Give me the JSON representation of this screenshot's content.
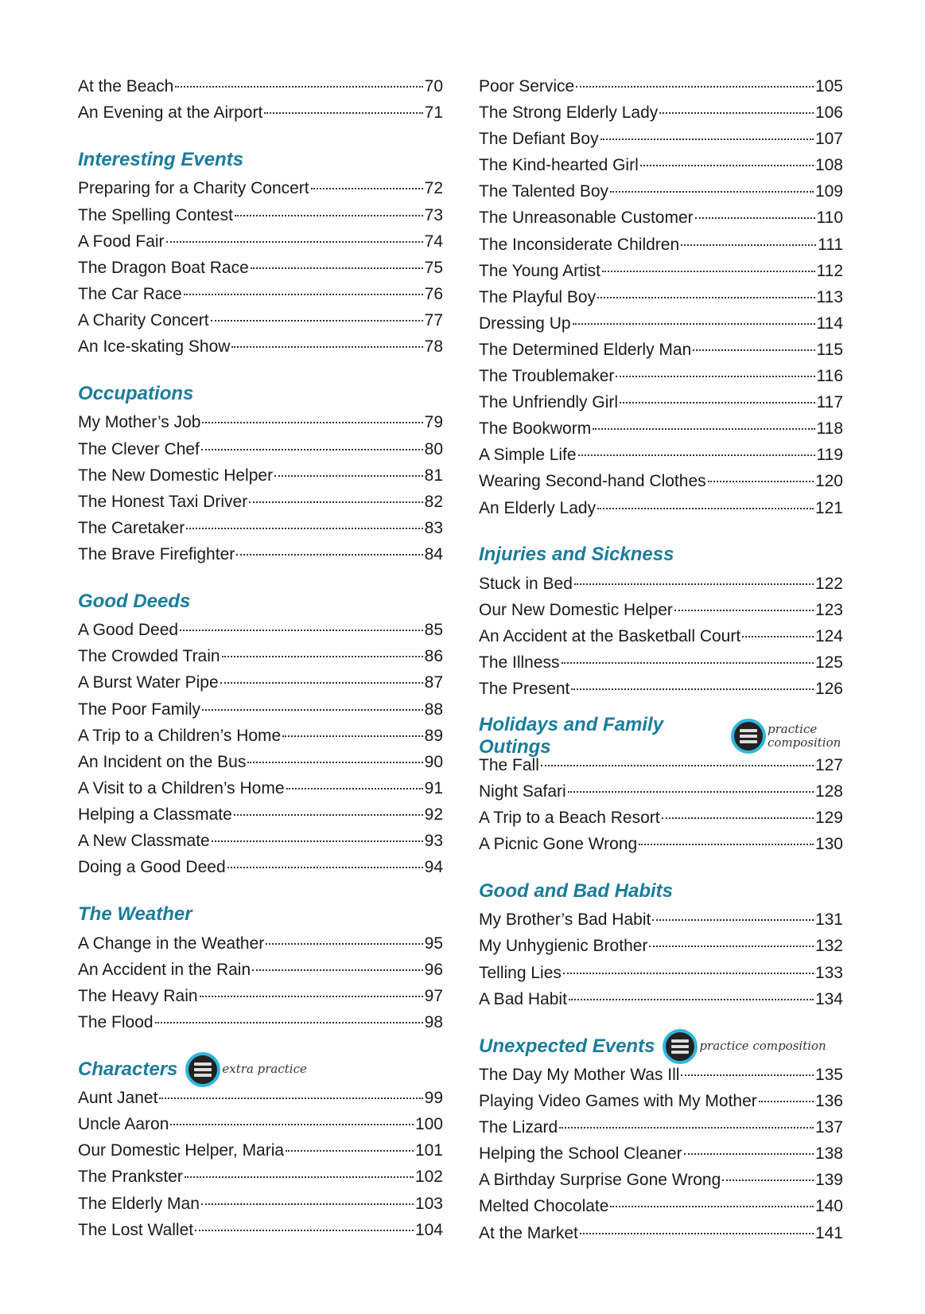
{
  "colors": {
    "heading": "#1b7c9c",
    "icon_ring": "#2fb7dd"
  },
  "left": [
    {
      "type": "entry",
      "title": "At the Beach",
      "page": "70"
    },
    {
      "type": "entry",
      "title": "An Evening at the Airport",
      "page": "71"
    },
    {
      "type": "heading",
      "title": "Interesting Events"
    },
    {
      "type": "entry",
      "title": "Preparing for a Charity Concert",
      "page": "72"
    },
    {
      "type": "entry",
      "title": "The Spelling Contest",
      "page": "73"
    },
    {
      "type": "entry",
      "title": "A Food Fair",
      "page": "74"
    },
    {
      "type": "entry",
      "title": "The Dragon Boat Race",
      "page": "75"
    },
    {
      "type": "entry",
      "title": "The Car Race",
      "page": "76"
    },
    {
      "type": "entry",
      "title": "A Charity Concert",
      "page": "77"
    },
    {
      "type": "entry",
      "title": "An Ice-skating Show",
      "page": "78"
    },
    {
      "type": "heading",
      "title": "Occupations"
    },
    {
      "type": "entry",
      "title": "My Mother’s Job",
      "page": "79"
    },
    {
      "type": "entry",
      "title": "The Clever Chef",
      "page": "80"
    },
    {
      "type": "entry",
      "title": "The New Domestic Helper",
      "page": "81"
    },
    {
      "type": "entry",
      "title": "The Honest Taxi Driver",
      "page": "82"
    },
    {
      "type": "entry",
      "title": "The Caretaker",
      "page": "83"
    },
    {
      "type": "entry",
      "title": "The Brave Firefighter",
      "page": "84"
    },
    {
      "type": "heading",
      "title": "Good Deeds"
    },
    {
      "type": "entry",
      "title": "A Good Deed",
      "page": "85"
    },
    {
      "type": "entry",
      "title": "The Crowded Train",
      "page": "86"
    },
    {
      "type": "entry",
      "title": "A Burst Water Pipe",
      "page": "87"
    },
    {
      "type": "entry",
      "title": "The Poor Family",
      "page": "88"
    },
    {
      "type": "entry",
      "title": "A Trip to a Children’s Home",
      "page": "89"
    },
    {
      "type": "entry",
      "title": "An Incident on the Bus",
      "page": "90"
    },
    {
      "type": "entry",
      "title": "A Visit to a Children’s Home",
      "page": "91"
    },
    {
      "type": "entry",
      "title": "Helping a Classmate",
      "page": "92"
    },
    {
      "type": "entry",
      "title": "A New Classmate",
      "page": "93"
    },
    {
      "type": "entry",
      "title": "Doing a Good Deed",
      "page": "94"
    },
    {
      "type": "heading",
      "title": "The Weather"
    },
    {
      "type": "entry",
      "title": "A Change in the Weather",
      "page": "95"
    },
    {
      "type": "entry",
      "title": "An Accident in the Rain",
      "page": "96"
    },
    {
      "type": "entry",
      "title": "The Heavy Rain",
      "page": "97"
    },
    {
      "type": "entry",
      "title": "The Flood",
      "page": "98"
    },
    {
      "type": "heading",
      "title": "Characters",
      "badge": "extra practice",
      "icon": "practice-book-icon"
    },
    {
      "type": "entry",
      "title": "Aunt Janet",
      "page": "99"
    },
    {
      "type": "entry",
      "title": "Uncle Aaron",
      "page": "100"
    },
    {
      "type": "entry",
      "title": "Our Domestic Helper, Maria",
      "page": "101"
    },
    {
      "type": "entry",
      "title": "The Prankster",
      "page": "102"
    },
    {
      "type": "entry",
      "title": "The Elderly Man",
      "page": "103"
    },
    {
      "type": "entry",
      "title": "The Lost Wallet",
      "page": "104"
    }
  ],
  "right": [
    {
      "type": "entry",
      "title": "Poor Service",
      "page": "105"
    },
    {
      "type": "entry",
      "title": "The Strong Elderly Lady",
      "page": "106"
    },
    {
      "type": "entry",
      "title": "The Defiant Boy",
      "page": "107"
    },
    {
      "type": "entry",
      "title": "The Kind-hearted Girl",
      "page": "108"
    },
    {
      "type": "entry",
      "title": "The Talented Boy",
      "page": "109"
    },
    {
      "type": "entry",
      "title": "The Unreasonable Customer",
      "page": "110"
    },
    {
      "type": "entry",
      "title": "The Inconsiderate Children",
      "page": "111"
    },
    {
      "type": "entry",
      "title": "The Young Artist",
      "page": "112"
    },
    {
      "type": "entry",
      "title": "The Playful Boy",
      "page": "113"
    },
    {
      "type": "entry",
      "title": "Dressing Up",
      "page": "114"
    },
    {
      "type": "entry",
      "title": "The Determined Elderly Man",
      "page": "115"
    },
    {
      "type": "entry",
      "title": "The Troublemaker",
      "page": "116"
    },
    {
      "type": "entry",
      "title": "The Unfriendly Girl",
      "page": "117"
    },
    {
      "type": "entry",
      "title": "The Bookworm",
      "page": "118"
    },
    {
      "type": "entry",
      "title": "A Simple Life",
      "page": "119"
    },
    {
      "type": "entry",
      "title": "Wearing Second-hand Clothes",
      "page": "120"
    },
    {
      "type": "entry",
      "title": "An Elderly Lady",
      "page": "121"
    },
    {
      "type": "heading",
      "title": "Injuries and Sickness"
    },
    {
      "type": "entry",
      "title": "Stuck in Bed",
      "page": "122"
    },
    {
      "type": "entry",
      "title": "Our New Domestic Helper",
      "page": "123"
    },
    {
      "type": "entry",
      "title": "An Accident at the Basketball Court",
      "page": "124"
    },
    {
      "type": "entry",
      "title": "The Illness",
      "page": "125"
    },
    {
      "type": "entry",
      "title": "The Present",
      "page": "126"
    },
    {
      "type": "heading",
      "title": "Holidays and Family Outings",
      "badge": "practice composition",
      "icon": "practice-book-icon",
      "narrow": true
    },
    {
      "type": "entry",
      "title": "The Fall",
      "page": "127"
    },
    {
      "type": "entry",
      "title": "Night Safari",
      "page": "128"
    },
    {
      "type": "entry",
      "title": "A Trip to a Beach Resort",
      "page": "129"
    },
    {
      "type": "entry",
      "title": "A Picnic Gone Wrong",
      "page": "130"
    },
    {
      "type": "heading",
      "title": "Good and Bad Habits"
    },
    {
      "type": "entry",
      "title": "My Brother’s Bad Habit",
      "page": "131"
    },
    {
      "type": "entry",
      "title": "My Unhygienic Brother",
      "page": "132"
    },
    {
      "type": "entry",
      "title": "Telling Lies",
      "page": "133"
    },
    {
      "type": "entry",
      "title": "A Bad Habit",
      "page": "134"
    },
    {
      "type": "heading",
      "title": "Unexpected Events",
      "badge": "practice composition",
      "icon": "practice-book-icon"
    },
    {
      "type": "entry",
      "title": "The Day My Mother Was Ill",
      "page": "135"
    },
    {
      "type": "entry",
      "title": "Playing Video Games with My Mother",
      "page": "136"
    },
    {
      "type": "entry",
      "title": "The Lizard",
      "page": "137"
    },
    {
      "type": "entry",
      "title": "Helping the School Cleaner",
      "page": "138"
    },
    {
      "type": "entry",
      "title": "A Birthday Surprise Gone Wrong",
      "page": "139"
    },
    {
      "type": "entry",
      "title": "Melted Chocolate",
      "page": "140"
    },
    {
      "type": "entry",
      "title": "At the Market",
      "page": "141"
    }
  ]
}
